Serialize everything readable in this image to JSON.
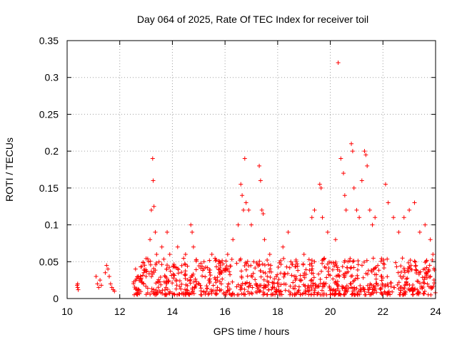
{
  "chart_data": {
    "type": "scatter",
    "title": "Day 064 of 2025, Rate Of TEC Index for receiver toil",
    "xlabel": "GPS time / hours",
    "ylabel": "ROTI / TECUs",
    "xlim": [
      10,
      24
    ],
    "ylim": [
      0,
      0.35
    ],
    "x_ticks": [
      10,
      12,
      14,
      16,
      18,
      20,
      22,
      24
    ],
    "x_tick_labels": [
      "10",
      "12",
      "14",
      "16",
      "18",
      "20",
      "22",
      "24"
    ],
    "y_ticks": [
      0,
      0.05,
      0.1,
      0.15,
      0.2,
      0.25,
      0.3,
      0.35
    ],
    "y_tick_labels": [
      "0",
      "0.05",
      "0.1",
      "0.15",
      "0.2",
      "0.25",
      "0.3",
      "0.35"
    ],
    "grid": true,
    "marker": "+",
    "marker_color": "#ff0000",
    "series": [
      {
        "name": "ROTI",
        "points": [
          [
            10.4,
            0.02
          ],
          [
            10.4,
            0.015
          ],
          [
            10.42,
            0.012
          ],
          [
            10.38,
            0.018
          ],
          [
            11.1,
            0.03
          ],
          [
            11.15,
            0.02
          ],
          [
            11.2,
            0.015
          ],
          [
            11.25,
            0.025
          ],
          [
            11.3,
            0.018
          ],
          [
            11.45,
            0.035
          ],
          [
            11.5,
            0.045
          ],
          [
            11.55,
            0.04
          ],
          [
            11.6,
            0.03
          ],
          [
            11.65,
            0.02
          ],
          [
            11.7,
            0.015
          ],
          [
            11.75,
            0.012
          ],
          [
            11.8,
            0.01
          ],
          [
            12.6,
            0.04
          ],
          [
            12.7,
            0.03
          ],
          [
            12.8,
            0.025
          ],
          [
            12.9,
            0.02
          ],
          [
            13.0,
            0.03
          ],
          [
            13.1,
            0.05
          ],
          [
            13.15,
            0.08
          ],
          [
            13.2,
            0.12
          ],
          [
            13.25,
            0.19
          ],
          [
            13.27,
            0.16
          ],
          [
            13.3,
            0.125
          ],
          [
            13.35,
            0.09
          ],
          [
            13.4,
            0.06
          ],
          [
            13.6,
            0.07
          ],
          [
            13.8,
            0.09
          ],
          [
            13.9,
            0.06
          ],
          [
            14.2,
            0.07
          ],
          [
            14.5,
            0.06
          ],
          [
            14.7,
            0.1
          ],
          [
            14.75,
            0.09
          ],
          [
            14.8,
            0.07
          ],
          [
            15.2,
            0.05
          ],
          [
            15.5,
            0.06
          ],
          [
            15.8,
            0.05
          ],
          [
            16.1,
            0.06
          ],
          [
            16.3,
            0.08
          ],
          [
            16.5,
            0.1
          ],
          [
            16.6,
            0.155
          ],
          [
            16.65,
            0.14
          ],
          [
            16.7,
            0.12
          ],
          [
            16.75,
            0.19
          ],
          [
            16.8,
            0.13
          ],
          [
            16.9,
            0.12
          ],
          [
            17.0,
            0.1
          ],
          [
            17.3,
            0.18
          ],
          [
            17.35,
            0.16
          ],
          [
            17.4,
            0.12
          ],
          [
            17.45,
            0.115
          ],
          [
            17.5,
            0.08
          ],
          [
            17.7,
            0.06
          ],
          [
            18.2,
            0.07
          ],
          [
            18.4,
            0.09
          ],
          [
            18.7,
            0.05
          ],
          [
            19.0,
            0.06
          ],
          [
            19.3,
            0.11
          ],
          [
            19.4,
            0.12
          ],
          [
            19.6,
            0.155
          ],
          [
            19.65,
            0.15
          ],
          [
            19.7,
            0.11
          ],
          [
            19.9,
            0.09
          ],
          [
            20.2,
            0.08
          ],
          [
            20.3,
            0.32
          ],
          [
            20.4,
            0.19
          ],
          [
            20.5,
            0.17
          ],
          [
            20.55,
            0.14
          ],
          [
            20.6,
            0.12
          ],
          [
            20.8,
            0.21
          ],
          [
            20.85,
            0.2
          ],
          [
            20.9,
            0.15
          ],
          [
            21.0,
            0.12
          ],
          [
            21.1,
            0.11
          ],
          [
            21.2,
            0.16
          ],
          [
            21.3,
            0.2
          ],
          [
            21.35,
            0.195
          ],
          [
            21.4,
            0.18
          ],
          [
            21.5,
            0.12
          ],
          [
            21.6,
            0.1
          ],
          [
            21.7,
            0.11
          ],
          [
            22.1,
            0.155
          ],
          [
            22.2,
            0.13
          ],
          [
            22.4,
            0.11
          ],
          [
            22.6,
            0.09
          ],
          [
            22.8,
            0.11
          ],
          [
            23.0,
            0.12
          ],
          [
            23.2,
            0.13
          ],
          [
            23.4,
            0.09
          ],
          [
            23.6,
            0.1
          ],
          [
            23.8,
            0.08
          ],
          [
            23.9,
            0.06
          ]
        ],
        "dense_clusters": [
          {
            "x_range": [
              12.5,
              24.0
            ],
            "y_range": [
              0.005,
              0.055
            ],
            "note": "dense band of ROTI samples near the baseline"
          }
        ]
      }
    ]
  }
}
